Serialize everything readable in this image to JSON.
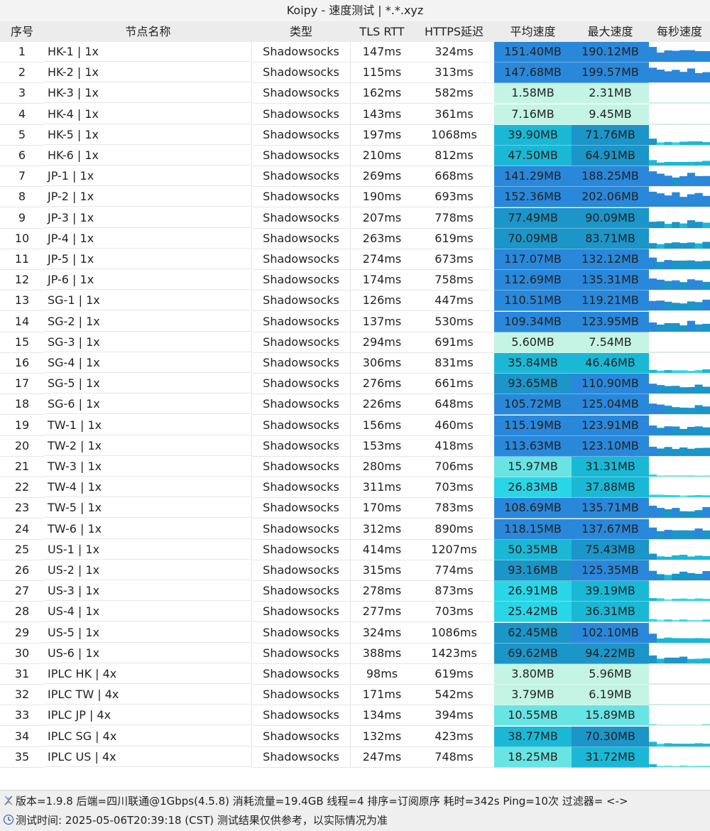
{
  "window": {
    "title": "Koipy - 速度测试 | *.*.xyz"
  },
  "headers": {
    "idx": "序号",
    "name": "节点名称",
    "type": "类型",
    "tls": "TLS RTT",
    "https": "HTTPS延迟",
    "avg": "平均速度",
    "max": "最大速度",
    "chart": "每秒速度"
  },
  "rows": [
    {
      "idx": "1",
      "name": "HK-1 | 1x",
      "type": "Shadowsocks",
      "tls": "147ms",
      "https": "324ms",
      "avg": "151.40MB",
      "max": "190.12MB",
      "avg_mb": 151.4,
      "max_mb": 190.12
    },
    {
      "idx": "2",
      "name": "HK-2 | 1x",
      "type": "Shadowsocks",
      "tls": "115ms",
      "https": "313ms",
      "avg": "147.68MB",
      "max": "199.57MB",
      "avg_mb": 147.68,
      "max_mb": 199.57
    },
    {
      "idx": "3",
      "name": "HK-3 | 1x",
      "type": "Shadowsocks",
      "tls": "162ms",
      "https": "582ms",
      "avg": "1.58MB",
      "max": "2.31MB",
      "avg_mb": 1.58,
      "max_mb": 2.31
    },
    {
      "idx": "4",
      "name": "HK-4 | 1x",
      "type": "Shadowsocks",
      "tls": "143ms",
      "https": "361ms",
      "avg": "7.16MB",
      "max": "9.45MB",
      "avg_mb": 7.16,
      "max_mb": 9.45
    },
    {
      "idx": "5",
      "name": "HK-5 | 1x",
      "type": "Shadowsocks",
      "tls": "197ms",
      "https": "1068ms",
      "avg": "39.90MB",
      "max": "71.76MB",
      "avg_mb": 39.9,
      "max_mb": 71.76
    },
    {
      "idx": "6",
      "name": "HK-6 | 1x",
      "type": "Shadowsocks",
      "tls": "210ms",
      "https": "812ms",
      "avg": "47.50MB",
      "max": "64.91MB",
      "avg_mb": 47.5,
      "max_mb": 64.91
    },
    {
      "idx": "7",
      "name": "JP-1 | 1x",
      "type": "Shadowsocks",
      "tls": "269ms",
      "https": "668ms",
      "avg": "141.29MB",
      "max": "188.25MB",
      "avg_mb": 141.29,
      "max_mb": 188.25
    },
    {
      "idx": "8",
      "name": "JP-2 | 1x",
      "type": "Shadowsocks",
      "tls": "190ms",
      "https": "693ms",
      "avg": "152.36MB",
      "max": "202.06MB",
      "avg_mb": 152.36,
      "max_mb": 202.06
    },
    {
      "idx": "9",
      "name": "JP-3 | 1x",
      "type": "Shadowsocks",
      "tls": "207ms",
      "https": "778ms",
      "avg": "77.49MB",
      "max": "90.09MB",
      "avg_mb": 77.49,
      "max_mb": 90.09
    },
    {
      "idx": "10",
      "name": "JP-4 | 1x",
      "type": "Shadowsocks",
      "tls": "263ms",
      "https": "619ms",
      "avg": "70.09MB",
      "max": "83.71MB",
      "avg_mb": 70.09,
      "max_mb": 83.71
    },
    {
      "idx": "11",
      "name": "JP-5 | 1x",
      "type": "Shadowsocks",
      "tls": "274ms",
      "https": "673ms",
      "avg": "117.07MB",
      "max": "132.12MB",
      "avg_mb": 117.07,
      "max_mb": 132.12
    },
    {
      "idx": "12",
      "name": "JP-6 | 1x",
      "type": "Shadowsocks",
      "tls": "174ms",
      "https": "758ms",
      "avg": "112.69MB",
      "max": "135.31MB",
      "avg_mb": 112.69,
      "max_mb": 135.31
    },
    {
      "idx": "13",
      "name": "SG-1 | 1x",
      "type": "Shadowsocks",
      "tls": "126ms",
      "https": "447ms",
      "avg": "110.51MB",
      "max": "119.21MB",
      "avg_mb": 110.51,
      "max_mb": 119.21
    },
    {
      "idx": "14",
      "name": "SG-2 | 1x",
      "type": "Shadowsocks",
      "tls": "137ms",
      "https": "530ms",
      "avg": "109.34MB",
      "max": "123.95MB",
      "avg_mb": 109.34,
      "max_mb": 123.95
    },
    {
      "idx": "15",
      "name": "SG-3 | 1x",
      "type": "Shadowsocks",
      "tls": "294ms",
      "https": "691ms",
      "avg": "5.60MB",
      "max": "7.54MB",
      "avg_mb": 5.6,
      "max_mb": 7.54
    },
    {
      "idx": "16",
      "name": "SG-4 | 1x",
      "type": "Shadowsocks",
      "tls": "306ms",
      "https": "831ms",
      "avg": "35.84MB",
      "max": "46.46MB",
      "avg_mb": 35.84,
      "max_mb": 46.46
    },
    {
      "idx": "17",
      "name": "SG-5 | 1x",
      "type": "Shadowsocks",
      "tls": "276ms",
      "https": "661ms",
      "avg": "93.65MB",
      "max": "110.90MB",
      "avg_mb": 93.65,
      "max_mb": 110.9
    },
    {
      "idx": "18",
      "name": "SG-6 | 1x",
      "type": "Shadowsocks",
      "tls": "226ms",
      "https": "648ms",
      "avg": "105.72MB",
      "max": "125.04MB",
      "avg_mb": 105.72,
      "max_mb": 125.04
    },
    {
      "idx": "19",
      "name": "TW-1 | 1x",
      "type": "Shadowsocks",
      "tls": "156ms",
      "https": "460ms",
      "avg": "115.19MB",
      "max": "123.91MB",
      "avg_mb": 115.19,
      "max_mb": 123.91
    },
    {
      "idx": "20",
      "name": "TW-2 | 1x",
      "type": "Shadowsocks",
      "tls": "153ms",
      "https": "418ms",
      "avg": "113.63MB",
      "max": "123.10MB",
      "avg_mb": 113.63,
      "max_mb": 123.1
    },
    {
      "idx": "21",
      "name": "TW-3 | 1x",
      "type": "Shadowsocks",
      "tls": "280ms",
      "https": "706ms",
      "avg": "15.97MB",
      "max": "31.31MB",
      "avg_mb": 15.97,
      "max_mb": 31.31
    },
    {
      "idx": "22",
      "name": "TW-4 | 1x",
      "type": "Shadowsocks",
      "tls": "311ms",
      "https": "703ms",
      "avg": "26.83MB",
      "max": "37.88MB",
      "avg_mb": 26.83,
      "max_mb": 37.88
    },
    {
      "idx": "23",
      "name": "TW-5 | 1x",
      "type": "Shadowsocks",
      "tls": "170ms",
      "https": "783ms",
      "avg": "108.69MB",
      "max": "135.71MB",
      "avg_mb": 108.69,
      "max_mb": 135.71
    },
    {
      "idx": "24",
      "name": "TW-6 | 1x",
      "type": "Shadowsocks",
      "tls": "312ms",
      "https": "890ms",
      "avg": "118.15MB",
      "max": "137.67MB",
      "avg_mb": 118.15,
      "max_mb": 137.67
    },
    {
      "idx": "25",
      "name": "US-1 | 1x",
      "type": "Shadowsocks",
      "tls": "414ms",
      "https": "1207ms",
      "avg": "50.35MB",
      "max": "75.43MB",
      "avg_mb": 50.35,
      "max_mb": 75.43
    },
    {
      "idx": "26",
      "name": "US-2 | 1x",
      "type": "Shadowsocks",
      "tls": "315ms",
      "https": "774ms",
      "avg": "93.16MB",
      "max": "125.35MB",
      "avg_mb": 93.16,
      "max_mb": 125.35
    },
    {
      "idx": "27",
      "name": "US-3 | 1x",
      "type": "Shadowsocks",
      "tls": "278ms",
      "https": "873ms",
      "avg": "26.91MB",
      "max": "39.19MB",
      "avg_mb": 26.91,
      "max_mb": 39.19
    },
    {
      "idx": "28",
      "name": "US-4 | 1x",
      "type": "Shadowsocks",
      "tls": "277ms",
      "https": "703ms",
      "avg": "25.42MB",
      "max": "36.31MB",
      "avg_mb": 25.42,
      "max_mb": 36.31
    },
    {
      "idx": "29",
      "name": "US-5 | 1x",
      "type": "Shadowsocks",
      "tls": "324ms",
      "https": "1086ms",
      "avg": "62.45MB",
      "max": "102.10MB",
      "avg_mb": 62.45,
      "max_mb": 102.1
    },
    {
      "idx": "30",
      "name": "US-6 | 1x",
      "type": "Shadowsocks",
      "tls": "388ms",
      "https": "1423ms",
      "avg": "69.62MB",
      "max": "94.22MB",
      "avg_mb": 69.62,
      "max_mb": 94.22
    },
    {
      "idx": "31",
      "name": "IPLC HK | 4x",
      "type": "Shadowsocks",
      "tls": "98ms",
      "https": "619ms",
      "avg": "3.80MB",
      "max": "5.96MB",
      "avg_mb": 3.8,
      "max_mb": 5.96
    },
    {
      "idx": "32",
      "name": "IPLC TW | 4x",
      "type": "Shadowsocks",
      "tls": "171ms",
      "https": "542ms",
      "avg": "3.79MB",
      "max": "6.19MB",
      "avg_mb": 3.79,
      "max_mb": 6.19
    },
    {
      "idx": "33",
      "name": "IPLC JP | 4x",
      "type": "Shadowsocks",
      "tls": "134ms",
      "https": "394ms",
      "avg": "10.55MB",
      "max": "15.89MB",
      "avg_mb": 10.55,
      "max_mb": 15.89
    },
    {
      "idx": "34",
      "name": "IPLC SG | 4x",
      "type": "Shadowsocks",
      "tls": "132ms",
      "https": "423ms",
      "avg": "38.77MB",
      "max": "70.30MB",
      "avg_mb": 38.77,
      "max_mb": 70.3
    },
    {
      "idx": "35",
      "name": "IPLC US | 4x",
      "type": "Shadowsocks",
      "tls": "247ms",
      "https": "748ms",
      "avg": "18.25MB",
      "max": "31.72MB",
      "avg_mb": 18.25,
      "max_mb": 31.72
    }
  ],
  "colors": {
    "speed_high": "#2a88db",
    "speed_mid_high": "#1c95c8",
    "speed_mid": "#1bb8d6",
    "speed_low_mid": "#2ad6e6",
    "speed_low": "#69e4e4",
    "speed_very_low": "#c4f4e4",
    "chart_strong": "#2a88db",
    "chart_light": "#bdebf0",
    "header_bg": "#ececec",
    "footer_bg": "#efefef"
  },
  "footer": {
    "line1_icon": "dna-icon",
    "line1": "版本=1.9.8  后端=四川联通@1Gbps(4.5.8) 消耗流量=19.4GB  线程=4  排序=订阅原序  耗时=342s  Ping=10次  过滤器= <->",
    "line2_icon": "clock-icon",
    "line2": "测试时间: 2025-05-06T20:39:18 (CST)  测试结果仅供参考，以实际情况为准"
  }
}
